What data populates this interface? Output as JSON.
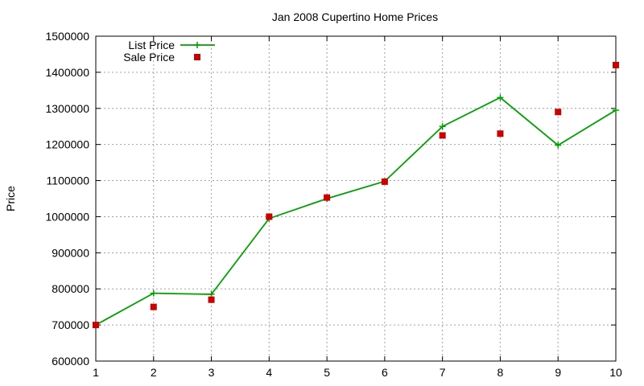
{
  "chart_data": {
    "type": "line",
    "title": "Jan 2008 Cupertino Home Prices",
    "xlabel": "",
    "ylabel": "Price",
    "xlim": [
      1,
      10
    ],
    "ylim": [
      600000,
      1500000
    ],
    "x_ticks": [
      "1",
      "2",
      "3",
      "4",
      "5",
      "6",
      "7",
      "8",
      "9",
      "10"
    ],
    "y_ticks": [
      "600000",
      "700000",
      "800000",
      "900000",
      "1000000",
      "1100000",
      "1200000",
      "1300000",
      "1400000",
      "1500000"
    ],
    "grid": true,
    "legend_position": "top-left",
    "x": [
      1,
      2,
      3,
      4,
      5,
      6,
      7,
      8,
      9,
      10
    ],
    "series": [
      {
        "name": "List Price",
        "style": "line+plus-marker",
        "color": "#00a000",
        "values": [
          700000,
          788000,
          785000,
          995000,
          1050000,
          1098000,
          1250000,
          1330000,
          1198000,
          1295000
        ]
      },
      {
        "name": "Sale Price",
        "style": "square-marker",
        "color": "#cc0000",
        "values": [
          700000,
          750000,
          770000,
          1000000,
          1053000,
          1097000,
          1225000,
          1230000,
          1290000,
          1420000
        ]
      }
    ]
  }
}
